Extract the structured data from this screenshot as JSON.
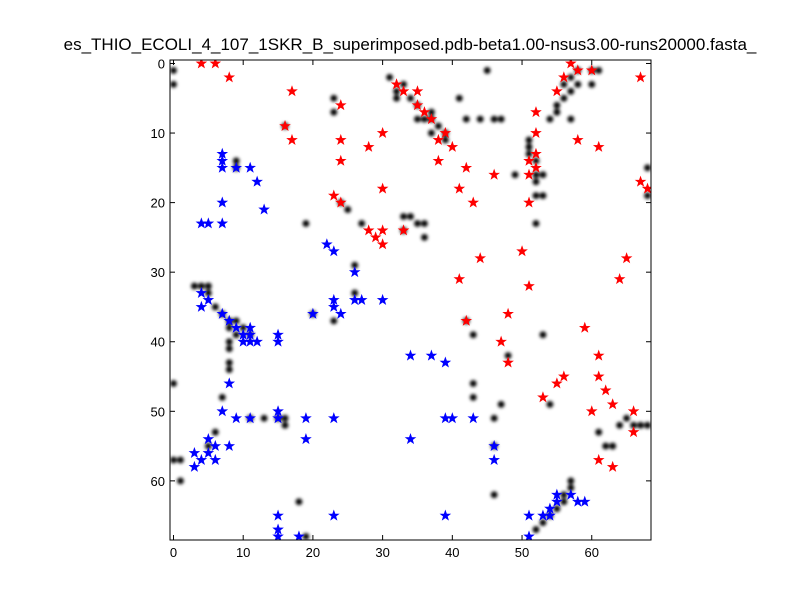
{
  "chart_data": {
    "type": "scatter",
    "title": "es_THIO_ECOLI_4_107_1SKR_B_superimposed.pdb-beta1.00-nsus3.00-runs20000.fasta_",
    "xlim": [
      -0.5,
      68.5
    ],
    "ylim": [
      68.5,
      -0.5
    ],
    "y_axis_inverted": true,
    "x_ticks": [
      "0",
      "10",
      "20",
      "30",
      "40",
      "50",
      "60"
    ],
    "y_ticks": [
      "0",
      "10",
      "20",
      "30",
      "40",
      "50",
      "60"
    ],
    "grid": false,
    "colors": {
      "red": "#ff0000",
      "blue": "#0000ff",
      "contact": "#000000"
    },
    "series": [
      {
        "marker": "star",
        "color": "#ff0000",
        "points": [
          [
            4,
            0
          ],
          [
            6,
            0
          ],
          [
            8,
            2
          ],
          [
            17,
            4
          ],
          [
            24,
            6
          ],
          [
            16,
            9
          ],
          [
            17,
            11
          ],
          [
            24,
            11
          ],
          [
            24,
            14
          ],
          [
            28,
            12
          ],
          [
            30,
            10
          ],
          [
            23,
            19
          ],
          [
            24,
            20
          ],
          [
            30,
            18
          ],
          [
            32,
            3
          ],
          [
            33,
            4
          ],
          [
            35,
            4
          ],
          [
            35,
            6
          ],
          [
            36,
            7
          ],
          [
            37,
            8
          ],
          [
            38,
            11
          ],
          [
            39,
            10
          ],
          [
            38,
            14
          ],
          [
            40,
            12
          ],
          [
            41,
            18
          ],
          [
            42,
            15
          ],
          [
            43,
            20
          ],
          [
            46,
            16
          ],
          [
            44,
            28
          ],
          [
            41,
            31
          ],
          [
            50,
            27
          ],
          [
            51,
            32
          ],
          [
            28,
            24
          ],
          [
            29,
            25
          ],
          [
            30,
            26
          ],
          [
            30,
            24
          ],
          [
            33,
            24
          ],
          [
            42,
            37
          ],
          [
            47,
            40
          ],
          [
            48,
            36
          ],
          [
            48,
            43
          ],
          [
            53,
            48
          ],
          [
            55,
            46
          ],
          [
            56,
            45
          ],
          [
            59,
            38
          ],
          [
            61,
            42
          ],
          [
            60,
            50
          ],
          [
            61,
            45
          ],
          [
            62,
            47
          ],
          [
            63,
            49
          ],
          [
            61,
            57
          ],
          [
            63,
            58
          ],
          [
            66,
            50
          ],
          [
            66,
            53
          ],
          [
            64,
            31
          ],
          [
            65,
            28
          ],
          [
            67,
            17
          ],
          [
            68,
            18
          ],
          [
            51,
            16
          ],
          [
            52,
            7
          ],
          [
            55,
            4
          ],
          [
            56,
            2
          ],
          [
            57,
            0
          ],
          [
            58,
            1
          ],
          [
            60,
            1
          ],
          [
            67,
            2
          ],
          [
            58,
            11
          ],
          [
            61,
            12
          ],
          [
            51,
            14
          ],
          [
            52,
            15
          ],
          [
            52,
            13
          ],
          [
            51,
            20
          ],
          [
            52,
            10
          ]
        ]
      },
      {
        "marker": "star",
        "color": "#0000ff",
        "points": [
          [
            7,
            13
          ],
          [
            7,
            14
          ],
          [
            7,
            15
          ],
          [
            9,
            15
          ],
          [
            11,
            15
          ],
          [
            12,
            17
          ],
          [
            7,
            20
          ],
          [
            13,
            21
          ],
          [
            4,
            23
          ],
          [
            5,
            23
          ],
          [
            7,
            23
          ],
          [
            4,
            33
          ],
          [
            5,
            34
          ],
          [
            4,
            35
          ],
          [
            7,
            36
          ],
          [
            8,
            37
          ],
          [
            9,
            38
          ],
          [
            10,
            39
          ],
          [
            11,
            38
          ],
          [
            11,
            39
          ],
          [
            10,
            40
          ],
          [
            11,
            40
          ],
          [
            12,
            40
          ],
          [
            15,
            39
          ],
          [
            15,
            40
          ],
          [
            20,
            36
          ],
          [
            22,
            26
          ],
          [
            23,
            27
          ],
          [
            26,
            30
          ],
          [
            23,
            34
          ],
          [
            23,
            35
          ],
          [
            24,
            36
          ],
          [
            26,
            34
          ],
          [
            27,
            34
          ],
          [
            30,
            34
          ],
          [
            8,
            46
          ],
          [
            7,
            50
          ],
          [
            9,
            51
          ],
          [
            11,
            51
          ],
          [
            15,
            50
          ],
          [
            15,
            51
          ],
          [
            19,
            51
          ],
          [
            23,
            51
          ],
          [
            19,
            54
          ],
          [
            5,
            54
          ],
          [
            6,
            55
          ],
          [
            8,
            55
          ],
          [
            3,
            56
          ],
          [
            5,
            56
          ],
          [
            4,
            57
          ],
          [
            6,
            57
          ],
          [
            3,
            58
          ],
          [
            34,
            42
          ],
          [
            37,
            42
          ],
          [
            39,
            43
          ],
          [
            39,
            51
          ],
          [
            40,
            51
          ],
          [
            43,
            51
          ],
          [
            34,
            54
          ],
          [
            46,
            55
          ],
          [
            46,
            57
          ],
          [
            15,
            65
          ],
          [
            15,
            67
          ],
          [
            15,
            68
          ],
          [
            18,
            68
          ],
          [
            23,
            65
          ],
          [
            39,
            65
          ],
          [
            51,
            65
          ],
          [
            51,
            68
          ],
          [
            53,
            65
          ],
          [
            54,
            65
          ],
          [
            54,
            64
          ],
          [
            55,
            62
          ],
          [
            55,
            63
          ],
          [
            57,
            62
          ],
          [
            58,
            63
          ],
          [
            59,
            63
          ]
        ]
      },
      {
        "marker": "blob",
        "color": "#000000",
        "points": [
          [
            0,
            1
          ],
          [
            0,
            3
          ],
          [
            0,
            46
          ],
          [
            0,
            57
          ],
          [
            1,
            57
          ],
          [
            1,
            60
          ],
          [
            3,
            32
          ],
          [
            4,
            32
          ],
          [
            5,
            32
          ],
          [
            5,
            33
          ],
          [
            6,
            35
          ],
          [
            7,
            36
          ],
          [
            8,
            37
          ],
          [
            9,
            37
          ],
          [
            8,
            38
          ],
          [
            9,
            39
          ],
          [
            8,
            40
          ],
          [
            8,
            41
          ],
          [
            8,
            43
          ],
          [
            8,
            44
          ],
          [
            7,
            48
          ],
          [
            6,
            53
          ],
          [
            5,
            55
          ],
          [
            10,
            38
          ],
          [
            11,
            39
          ],
          [
            11,
            51
          ],
          [
            13,
            51
          ],
          [
            15,
            51
          ],
          [
            16,
            51
          ],
          [
            16,
            52
          ],
          [
            9,
            14
          ],
          [
            9,
            15
          ],
          [
            16,
            9
          ],
          [
            19,
            23
          ],
          [
            23,
            5
          ],
          [
            23,
            7
          ],
          [
            24,
            20
          ],
          [
            25,
            21
          ],
          [
            27,
            23
          ],
          [
            26,
            29
          ],
          [
            26,
            33
          ],
          [
            23,
            37
          ],
          [
            20,
            36
          ],
          [
            18,
            63
          ],
          [
            19,
            68
          ],
          [
            31,
            2
          ],
          [
            32,
            4
          ],
          [
            33,
            3
          ],
          [
            32,
            5
          ],
          [
            34,
            5
          ],
          [
            35,
            6
          ],
          [
            35,
            8
          ],
          [
            36,
            8
          ],
          [
            37,
            8
          ],
          [
            37,
            7
          ],
          [
            38,
            9
          ],
          [
            39,
            10
          ],
          [
            39,
            11
          ],
          [
            37,
            10
          ],
          [
            35,
            23
          ],
          [
            36,
            23
          ],
          [
            36,
            25
          ],
          [
            33,
            22
          ],
          [
            33,
            24
          ],
          [
            34,
            22
          ],
          [
            41,
            5
          ],
          [
            42,
            8
          ],
          [
            42,
            37
          ],
          [
            43,
            39
          ],
          [
            43,
            46
          ],
          [
            43,
            48
          ],
          [
            44,
            8
          ],
          [
            46,
            8
          ],
          [
            47,
            8
          ],
          [
            47,
            49
          ],
          [
            48,
            42
          ],
          [
            46,
            51
          ],
          [
            46,
            55
          ],
          [
            46,
            62
          ],
          [
            45,
            1
          ],
          [
            49,
            16
          ],
          [
            51,
            11
          ],
          [
            51,
            12
          ],
          [
            51,
            13
          ],
          [
            52,
            14
          ],
          [
            52,
            16
          ],
          [
            52,
            17
          ],
          [
            52,
            19
          ],
          [
            53,
            16
          ],
          [
            53,
            19
          ],
          [
            52,
            23
          ],
          [
            53,
            39
          ],
          [
            54,
            49
          ],
          [
            54,
            8
          ],
          [
            55,
            7
          ],
          [
            55,
            6
          ],
          [
            56,
            5
          ],
          [
            56,
            3
          ],
          [
            57,
            2
          ],
          [
            57,
            4
          ],
          [
            57,
            8
          ],
          [
            58,
            1
          ],
          [
            58,
            3
          ],
          [
            60,
            1
          ],
          [
            60,
            3
          ],
          [
            61,
            1
          ],
          [
            61,
            53
          ],
          [
            62,
            55
          ],
          [
            63,
            55
          ],
          [
            64,
            52
          ],
          [
            65,
            51
          ],
          [
            66,
            52
          ],
          [
            67,
            52
          ],
          [
            68,
            52
          ],
          [
            68,
            15
          ],
          [
            68,
            19
          ],
          [
            57,
            60
          ],
          [
            57,
            61
          ],
          [
            56,
            62
          ],
          [
            56,
            63
          ],
          [
            55,
            64
          ],
          [
            54,
            65
          ],
          [
            53,
            66
          ],
          [
            52,
            67
          ]
        ]
      }
    ]
  }
}
